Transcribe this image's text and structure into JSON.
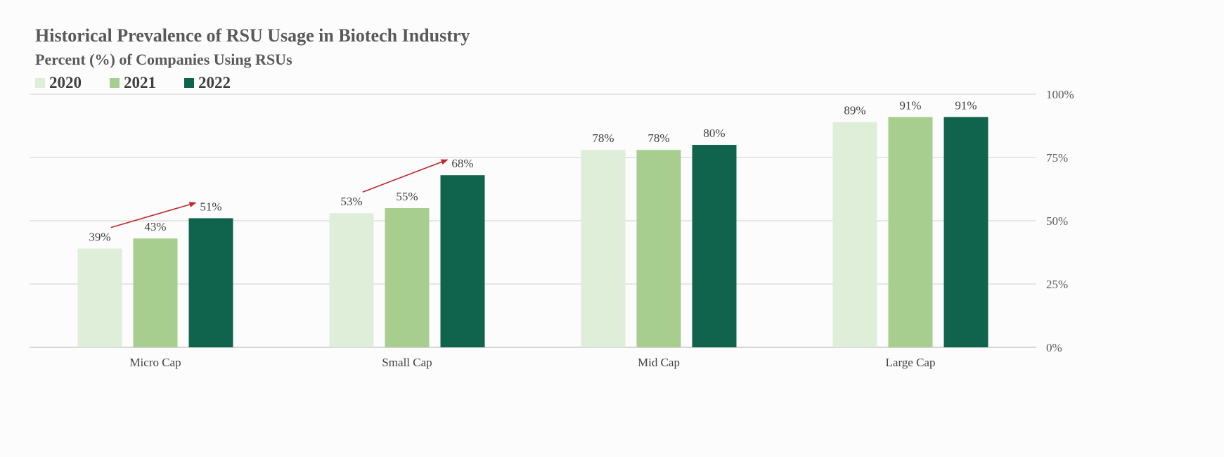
{
  "chart_data": {
    "type": "bar",
    "title": "Historical Prevalence of RSU Usage in Biotech Industry",
    "subtitle": "Percent (%) of Companies Using RSUs",
    "categories": [
      "Micro Cap",
      "Small Cap",
      "Mid Cap",
      "Large Cap"
    ],
    "series": [
      {
        "name": "2020",
        "color": "#deeed8",
        "values": [
          39,
          53,
          78,
          89
        ]
      },
      {
        "name": "2021",
        "color": "#a8ce8f",
        "values": [
          43,
          55,
          78,
          91
        ]
      },
      {
        "name": "2022",
        "color": "#10634d",
        "values": [
          51,
          68,
          80,
          91
        ]
      }
    ],
    "data_labels": [
      [
        "39%",
        "53%",
        "78%",
        "89%"
      ],
      [
        "43%",
        "55%",
        "78%",
        "91%"
      ],
      [
        "51%",
        "68%",
        "80%",
        "91%"
      ]
    ],
    "ylim": [
      0,
      100
    ],
    "yticks": [
      0,
      25,
      50,
      75,
      100
    ],
    "ytick_labels": [
      "0%",
      "25%",
      "50%",
      "75%",
      "100%"
    ],
    "yaxis_side": "right",
    "grid": true,
    "legend_position": "top-left",
    "annotations": [
      {
        "type": "arrow",
        "category": "Micro Cap",
        "from_series": "2020",
        "to_series": "2022",
        "color": "#c0282d"
      },
      {
        "type": "arrow",
        "category": "Small Cap",
        "from_series": "2020",
        "to_series": "2022",
        "color": "#c0282d"
      }
    ]
  }
}
